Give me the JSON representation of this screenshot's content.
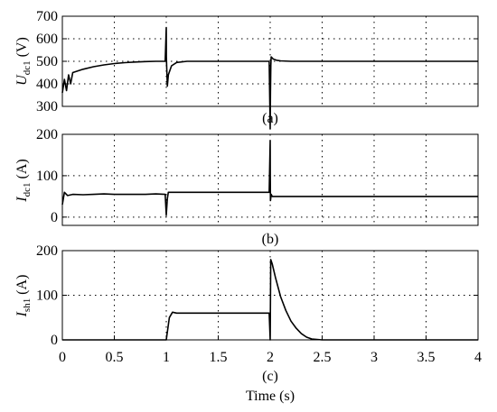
{
  "chart_data": [
    {
      "type": "line",
      "ylabel_main": "U",
      "ylabel_sub": "dc1",
      "ylabel_unit": "(V)",
      "caption": "(a)",
      "xlim": [
        0,
        4
      ],
      "ylim": [
        300,
        700
      ],
      "yticks": [
        "300",
        "400",
        "500",
        "600",
        "700"
      ],
      "grid": true,
      "series": [
        {
          "x": [
            0,
            0.02,
            0.04,
            0.06,
            0.08,
            0.1,
            0.2,
            0.3,
            0.4,
            0.5,
            0.6,
            0.7,
            0.8,
            0.9,
            0.99,
            1.0,
            1.001,
            1.01,
            1.02,
            1.05,
            1.1,
            1.2,
            1.5,
            1.8,
            1.99,
            2.0,
            2.003,
            2.006,
            2.01,
            2.03,
            2.06,
            2.1,
            2.2,
            2.5,
            3.0,
            3.5,
            4.0
          ],
          "y": [
            360,
            420,
            370,
            440,
            400,
            450,
            465,
            476,
            484,
            490,
            494,
            497,
            499,
            500,
            500,
            650,
            520,
            390,
            440,
            480,
            495,
            500,
            500,
            500,
            500,
            200,
            360,
            480,
            520,
            510,
            505,
            502,
            500,
            500,
            500,
            500,
            500
          ]
        }
      ]
    },
    {
      "type": "line",
      "ylabel_main": "I",
      "ylabel_sub": "dc1",
      "ylabel_unit": "(A)",
      "caption": "(b)",
      "xlim": [
        0,
        4
      ],
      "ylim": [
        -20,
        200
      ],
      "yticks": [
        "0",
        "100",
        "200"
      ],
      "grid": true,
      "series": [
        {
          "x": [
            0,
            0.02,
            0.05,
            0.1,
            0.2,
            0.3,
            0.4,
            0.5,
            0.6,
            0.7,
            0.8,
            0.9,
            0.99,
            1.0,
            1.01,
            1.02,
            1.05,
            1.2,
            1.5,
            1.99,
            2.0,
            2.001,
            2.003,
            2.01,
            2.02,
            2.1,
            2.5,
            3.0,
            3.5,
            4.0
          ],
          "y": [
            30,
            60,
            52,
            55,
            54,
            55,
            56,
            55,
            55,
            55,
            55,
            56,
            55,
            5,
            45,
            60,
            60,
            60,
            60,
            60,
            185,
            100,
            40,
            55,
            50,
            50,
            50,
            50,
            50,
            50
          ]
        }
      ]
    },
    {
      "type": "line",
      "ylabel_main": "I",
      "ylabel_sub": "sh1",
      "ylabel_unit": "(A)",
      "caption": "(c)",
      "xlim": [
        0,
        4
      ],
      "ylim": [
        0,
        200
      ],
      "yticks": [
        "0",
        "100",
        "200"
      ],
      "xticks": [
        "0",
        "0.5",
        "1",
        "1.5",
        "2",
        "2.5",
        "3",
        "3.5",
        "4"
      ],
      "xlabel": "Time (s)",
      "grid": true,
      "series": [
        {
          "x": [
            0,
            0.99,
            1.0,
            1.03,
            1.06,
            1.1,
            1.5,
            1.99,
            2.0,
            2.005,
            2.02,
            2.05,
            2.1,
            2.15,
            2.2,
            2.25,
            2.3,
            2.35,
            2.4,
            2.5,
            3.0,
            4.0
          ],
          "y": [
            0,
            0,
            0,
            50,
            62,
            60,
            60,
            60,
            0,
            180,
            170,
            140,
            97,
            66,
            42,
            26,
            14,
            6,
            2,
            0,
            0,
            0
          ]
        }
      ]
    }
  ]
}
